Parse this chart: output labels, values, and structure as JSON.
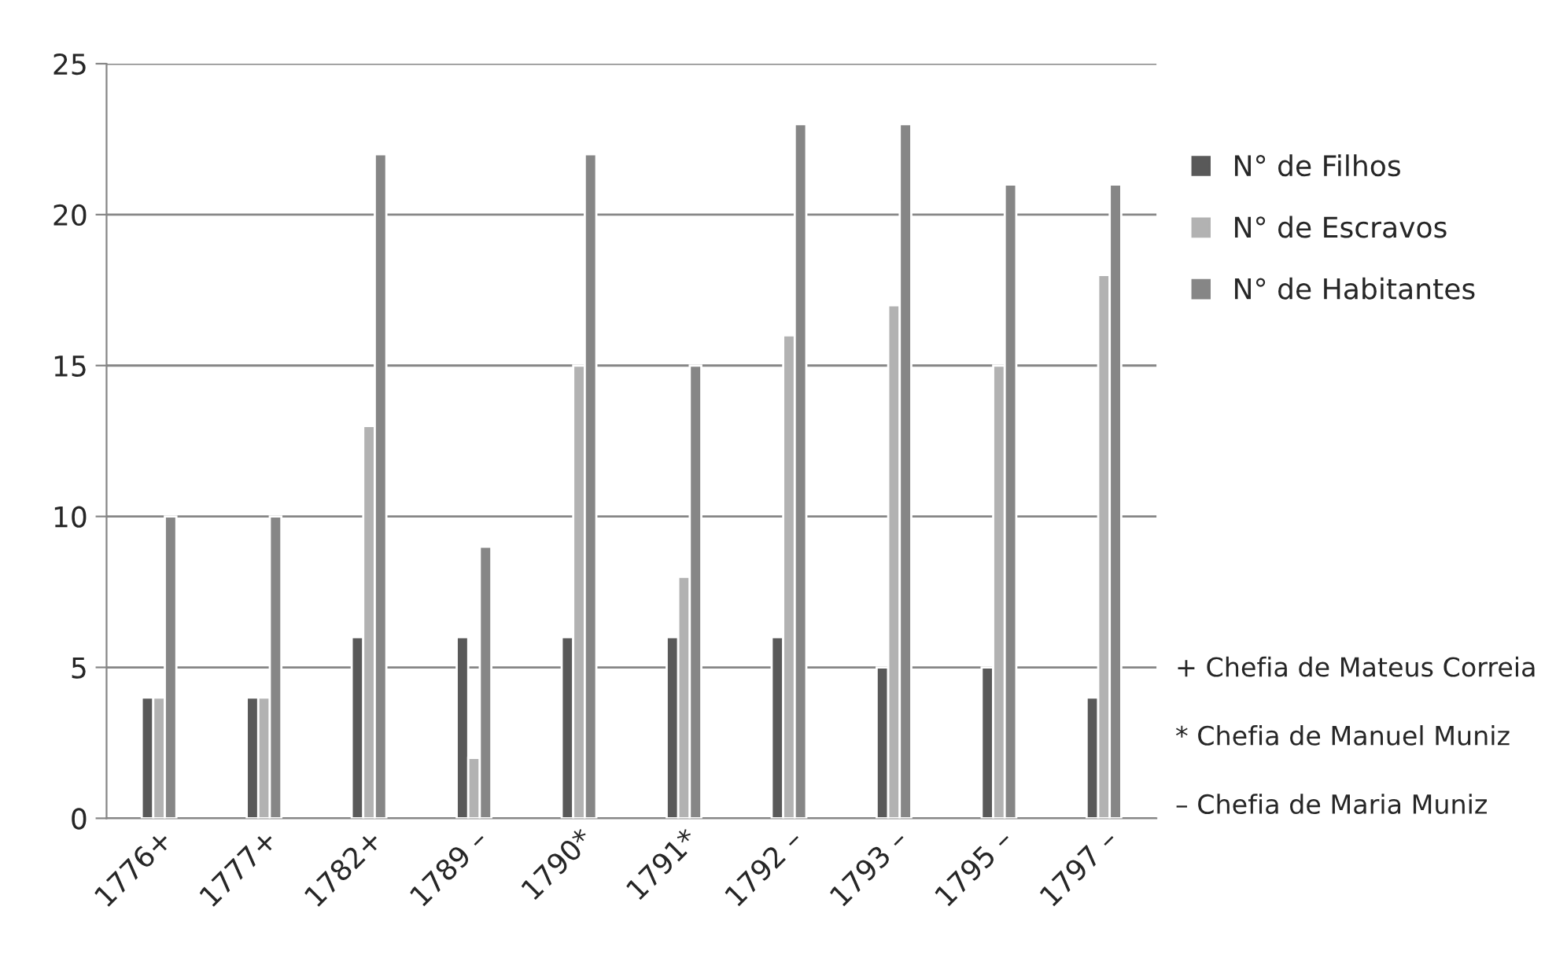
{
  "chart_data": {
    "type": "bar",
    "categories": [
      "1776+",
      "1777+",
      "1782+",
      "1789 –",
      "1790*",
      "1791*",
      "1792 –",
      "1793 –",
      "1795 –",
      "1797 –"
    ],
    "series": [
      {
        "name": "N° de Filhos",
        "color": "#595959",
        "values": [
          4,
          4,
          6,
          6,
          6,
          6,
          6,
          5,
          5,
          4
        ]
      },
      {
        "name": "N° de Escravos",
        "color": "#b2b2b2",
        "values": [
          4,
          4,
          13,
          2,
          15,
          8,
          16,
          17,
          15,
          18
        ]
      },
      {
        "name": "N° de Habitantes",
        "color": "#868686",
        "values": [
          10,
          10,
          22,
          9,
          22,
          15,
          23,
          23,
          21,
          21
        ]
      }
    ],
    "ylim": [
      0,
      25
    ],
    "yticks": [
      0,
      5,
      10,
      15,
      20,
      25
    ],
    "grid": "y",
    "legend": "right",
    "annotations": [
      "+ Chefia de Mateus Correia",
      "* Chefia de Manuel Muniz",
      "– Chefia de Maria Muniz"
    ]
  }
}
